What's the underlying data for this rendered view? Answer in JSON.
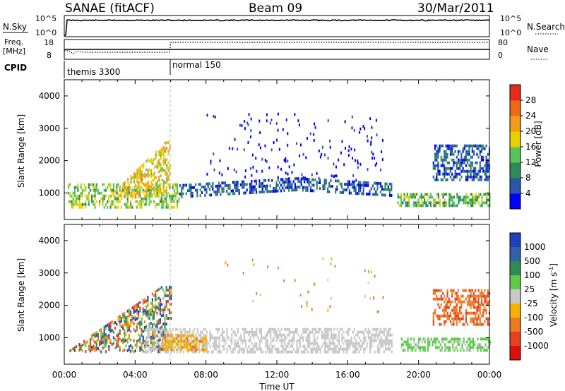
{
  "header": {
    "title": "SANAE (fitACF)",
    "beam": "Beam 09",
    "date": "30/Mar/2011"
  },
  "top_panels": {
    "nsky_label": "N.Sky",
    "nsky_ticks": [
      "10^5",
      "10^0"
    ],
    "nsearch_label": "N.Search",
    "freq_label_line1": "Freq.",
    "freq_label_line2": "[MHz]",
    "freq_ticks": [
      "18",
      "8"
    ],
    "nave_label": "Nave",
    "nave_ticks": [
      "80",
      "0"
    ],
    "cpid_label": "CPID",
    "cpid_segments": [
      {
        "label": "themis 3300",
        "start_hour": 0,
        "end_hour": 6
      },
      {
        "label": "normal 150",
        "start_hour": 6,
        "end_hour": 24
      }
    ]
  },
  "chart_data": [
    {
      "type": "heatmap",
      "title": "Power",
      "ylabel": "Slant Range [km]",
      "xlabel": "Time UT",
      "x_ticks": [
        "00:00",
        "04:00",
        "08:00",
        "12:00",
        "16:00",
        "20:00",
        "00:00"
      ],
      "x_range_hours": [
        0,
        24
      ],
      "y_ticks": [
        1000,
        2000,
        3000,
        4000
      ],
      "ylim": [
        180,
        4500
      ],
      "colorbar": {
        "label": "Power [dB]",
        "ticks": [
          4,
          8,
          12,
          16,
          20,
          24,
          28
        ],
        "range": [
          0,
          30
        ],
        "colors": [
          "#0000ff",
          "#2a55a8",
          "#2e8a57",
          "#57c45a",
          "#e8d000",
          "#f49a1a",
          "#ee6a12",
          "#e62a1a"
        ]
      },
      "features": [
        {
          "name": "near-range band",
          "start_hour": 0.2,
          "end_hour": 6.5,
          "range_km": [
            600,
            1300
          ],
          "power_db": 14
        },
        {
          "name": "rising streaks",
          "start_hour": 2.5,
          "end_hour": 6.0,
          "range_km": [
            900,
            2600
          ],
          "power_db": 18
        },
        {
          "name": "u-shaped trace",
          "start_hour": 6.5,
          "end_hour": 18.5,
          "range_km": [
            750,
            1400
          ],
          "power_db": 6
        },
        {
          "name": "late band",
          "start_hour": 18.8,
          "end_hour": 24,
          "range_km": [
            600,
            1000
          ],
          "power_db": 12
        },
        {
          "name": "late echo",
          "start_hour": 20.8,
          "end_hour": 24,
          "range_km": [
            1400,
            2500
          ],
          "power_db": 6
        }
      ]
    },
    {
      "type": "heatmap",
      "title": "Velocity",
      "ylabel": "Slant Range [km]",
      "xlabel": "Time UT",
      "x_ticks": [
        "00:00",
        "04:00",
        "08:00",
        "12:00",
        "16:00",
        "20:00",
        "00:00"
      ],
      "x_range_hours": [
        0,
        24
      ],
      "y_ticks": [
        1000,
        2000,
        3000,
        4000
      ],
      "ylim": [
        180,
        4500
      ],
      "colorbar": {
        "label_main": "Velocity",
        "label_units": "[m s",
        "label_exp": "-1",
        "label_close": "]",
        "ticks": [
          "1000",
          "500",
          "100",
          "25",
          "-25",
          "-100",
          "-500",
          "-1000"
        ],
        "colors": [
          "#2040c0",
          "#2f62a8",
          "#2f8a58",
          "#5ecb48",
          "#c8c8c8",
          "#f5b000",
          "#ee7a20",
          "#e64020",
          "#dd1010"
        ]
      },
      "features": [
        {
          "name": "mixed near range",
          "start_hour": 0.2,
          "end_hour": 6.0,
          "range_km": [
            600,
            2600
          ],
          "velocity": "mixed"
        },
        {
          "name": "ground scatter",
          "start_hour": 4.5,
          "end_hour": 18.5,
          "range_km": [
            600,
            1300
          ],
          "velocity": "0"
        },
        {
          "name": "negative patch",
          "start_hour": 5.5,
          "end_hour": 8.0,
          "range_km": [
            600,
            1100
          ],
          "velocity": "-100"
        },
        {
          "name": "late scatter",
          "start_hour": 19.0,
          "end_hour": 24,
          "range_km": [
            600,
            1000
          ],
          "velocity": "100"
        },
        {
          "name": "late echo",
          "start_hour": 20.8,
          "end_hour": 24,
          "range_km": [
            1400,
            2500
          ],
          "velocity": "-500"
        }
      ]
    }
  ]
}
